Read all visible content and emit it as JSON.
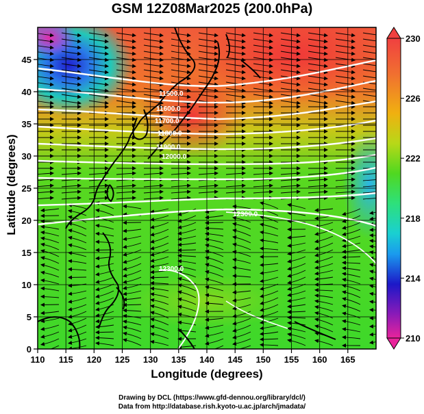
{
  "title": "GSM 12Z08Mar2025 (200.0hPa)",
  "xlabel": "Longitude (degrees)",
  "ylabel": "Latitude  (degrees)",
  "credit_line1": "Drawing by DCL (https://www.gfd-dennou.org/library/dcl/)",
  "credit_line2": "Data from http://database.rish.kyoto-u.ac.jp/arch/jmadata/",
  "map": {
    "lon_range": [
      110,
      170
    ],
    "lat_range": [
      0,
      50
    ],
    "lon_ticks": [
      "110",
      "115",
      "120",
      "125",
      "130",
      "135",
      "140",
      "145",
      "150",
      "155",
      "160",
      "165"
    ],
    "lat_ticks": [
      "0",
      "5",
      "10",
      "15",
      "20",
      "25",
      "30",
      "35",
      "40",
      "45"
    ],
    "colorbar": {
      "min": 210,
      "max": 230,
      "tick_labels": [
        "230",
        "226",
        "222",
        "218",
        "214",
        "210"
      ],
      "colors": [
        "#e8249b",
        "#1c18c8",
        "#1aa6ee",
        "#2ee07a",
        "#40d820",
        "#9ad81a",
        "#f0a010",
        "#f05030"
      ]
    },
    "contour_labels": [
      "11500.0",
      "11600.0",
      "11700.0",
      "11800.0",
      "11900.0",
      "12000.0",
      "12300.0",
      "12300.0"
    ]
  }
}
